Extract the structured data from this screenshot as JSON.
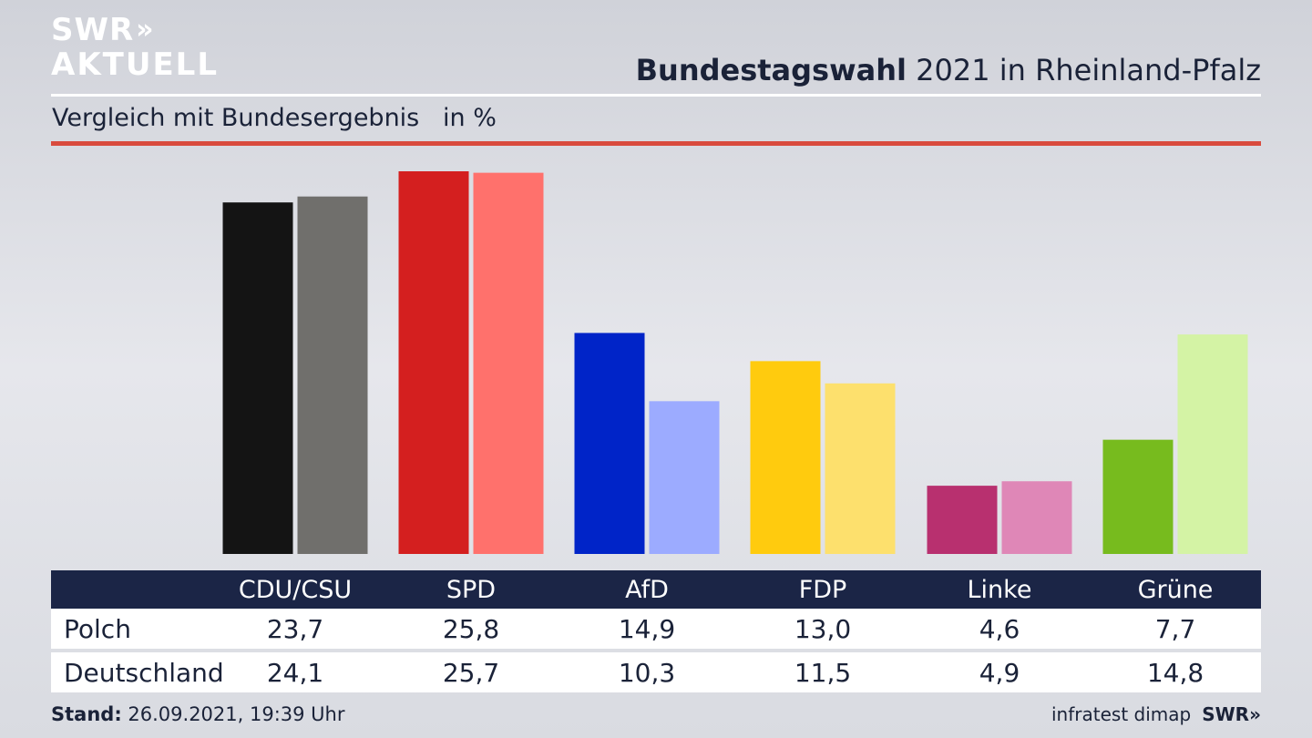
{
  "logo": {
    "line1": "SWR",
    "arrows": "»",
    "line2": "AKTUELL"
  },
  "title": {
    "bold": "Bundestagswahl",
    "rest": " 2021 in Rheinland-Pfalz"
  },
  "subtitle": "Vergleich mit Bundesergebnis   in %",
  "chart_data": {
    "type": "bar",
    "categories": [
      "CDU/CSU",
      "SPD",
      "AfD",
      "FDP",
      "Linke",
      "Grüne"
    ],
    "series": [
      {
        "name": "Polch",
        "values": [
          23.7,
          25.8,
          14.9,
          13.0,
          4.6,
          7.7
        ]
      },
      {
        "name": "Deutschland",
        "values": [
          24.1,
          25.7,
          10.3,
          11.5,
          4.9,
          14.8
        ]
      }
    ],
    "colors": {
      "Polch": [
        "#141414",
        "#d41f1f",
        "#0024c8",
        "#ffcb0e",
        "#b8306f",
        "#77bb1e"
      ],
      "Deutschland": [
        "#706f6c",
        "#ff716c",
        "#9cabff",
        "#fde06d",
        "#df87b7",
        "#d4f3a5"
      ]
    },
    "title": "Bundestagswahl 2021 in Rheinland-Pfalz",
    "xlabel": "",
    "ylabel": "",
    "ylim": [
      0,
      25.8
    ],
    "grid": false,
    "legend": "none"
  },
  "table": {
    "headers": [
      "CDU/CSU",
      "SPD",
      "AfD",
      "FDP",
      "Linke",
      "Grüne"
    ],
    "rows": [
      {
        "label": "Polch",
        "values": [
          "23,7",
          "25,8",
          "14,9",
          "13,0",
          "4,6",
          "7,7"
        ]
      },
      {
        "label": "Deutschland",
        "values": [
          "24,1",
          "25,7",
          "10,3",
          "11,5",
          "4,9",
          "14,8"
        ]
      }
    ]
  },
  "footer": {
    "stand_label": "Stand:",
    "stand_value": " 26.09.2021, 19:39 Uhr",
    "source": "infratest dimap",
    "brand": "SWR»"
  }
}
